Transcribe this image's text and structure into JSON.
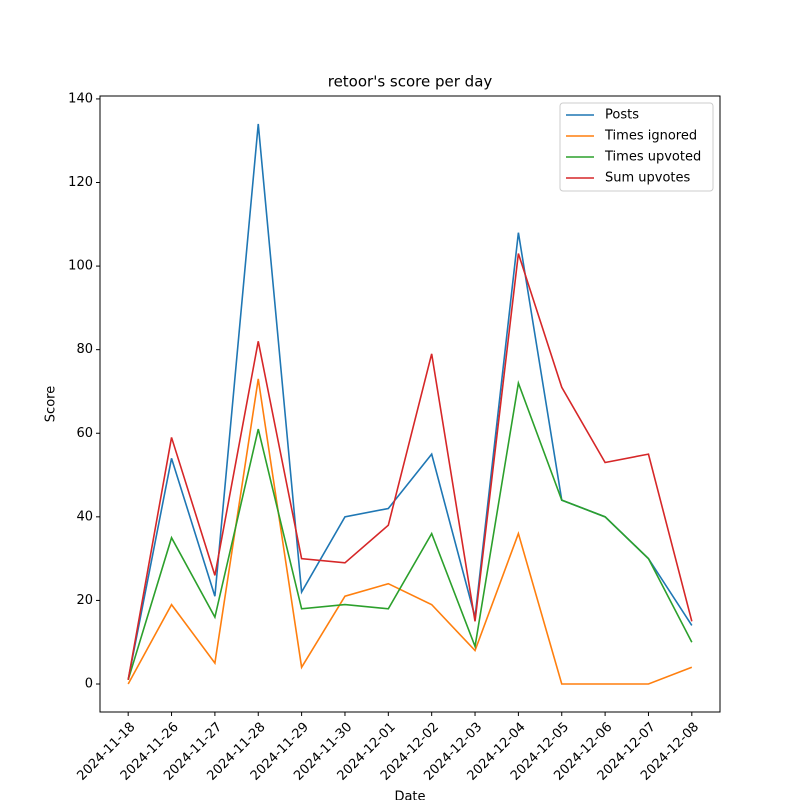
{
  "chart_data": {
    "type": "line",
    "title": "retoor's score per day",
    "xlabel": "Date",
    "ylabel": "Score",
    "categories": [
      "2024-11-18",
      "2024-11-26",
      "2024-11-27",
      "2024-11-28",
      "2024-11-29",
      "2024-11-30",
      "2024-12-01",
      "2024-12-02",
      "2024-12-03",
      "2024-12-04",
      "2024-12-05",
      "2024-12-06",
      "2024-12-07",
      "2024-12-08"
    ],
    "series": [
      {
        "name": "Posts",
        "color": "#1f77b4",
        "values": [
          1,
          54,
          21,
          134,
          22,
          40,
          42,
          55,
          16,
          108,
          44,
          40,
          30,
          14
        ]
      },
      {
        "name": "Times ignored",
        "color": "#ff7f0e",
        "values": [
          0,
          19,
          5,
          73,
          4,
          21,
          24,
          19,
          8,
          36,
          0,
          0,
          0,
          4
        ]
      },
      {
        "name": "Times upvoted",
        "color": "#2ca02c",
        "values": [
          1,
          35,
          16,
          61,
          18,
          19,
          18,
          36,
          9,
          72,
          44,
          40,
          30,
          10
        ]
      },
      {
        "name": "Sum upvotes",
        "color": "#d62728",
        "values": [
          1,
          59,
          26,
          82,
          30,
          29,
          38,
          79,
          15,
          103,
          71,
          53,
          55,
          15
        ]
      }
    ],
    "ylim": [
      -6.7,
      140.7
    ],
    "yticks": [
      0,
      20,
      40,
      60,
      80,
      100,
      120,
      140
    ],
    "grid": false,
    "legend": "upper right"
  }
}
